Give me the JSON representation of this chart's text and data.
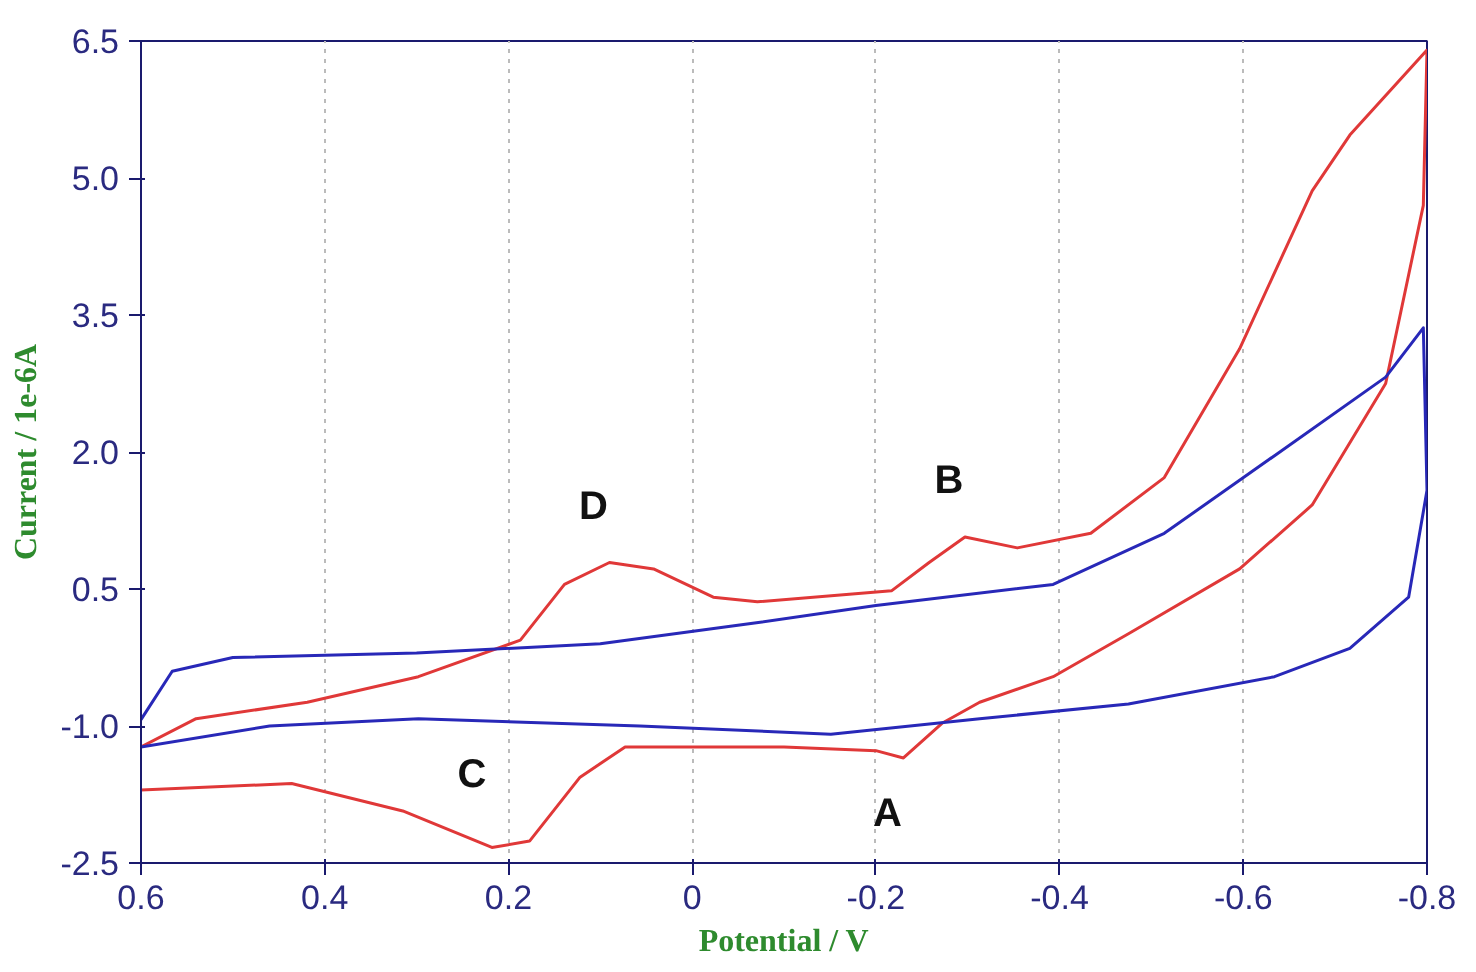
{
  "chart_data": {
    "type": "line",
    "xlabel": "Potential / V",
    "ylabel": "Current / 1e-6A",
    "xlim": [
      0.6,
      -0.8
    ],
    "ylim": [
      -2.5,
      6.5
    ],
    "xticks": [
      0.6,
      0.4,
      0.2,
      0,
      -0.2,
      -0.4,
      -0.6,
      -0.8
    ],
    "yticks": [
      6.5,
      {
        "value": 5,
        "label": "5.0"
      },
      3.5,
      {
        "value": 2,
        "label": "2.0"
      },
      0.5,
      {
        "value": -1,
        "label": "-1.0"
      },
      -2.5
    ],
    "grid": "x",
    "marker": "none",
    "line_style": "solid",
    "series": [
      {
        "color": "#e03838",
        "x": [
          0.6,
          0.436,
          0.315,
          0.218,
          0.177,
          0.122,
          0.073,
          -0.1,
          -0.2,
          -0.23,
          -0.272,
          -0.313,
          -0.393,
          -0.475,
          -0.596,
          -0.675,
          -0.755,
          -0.796,
          -0.8,
          -0.716,
          -0.675,
          -0.596,
          -0.514,
          -0.434,
          -0.354,
          -0.297,
          -0.258,
          -0.217,
          -0.071,
          -0.023,
          0.042,
          0.09,
          0.139,
          0.187,
          0.298,
          0.419,
          0.54,
          0.6
        ],
        "values": [
          -1.7,
          -1.63,
          -1.93,
          -2.33,
          -2.26,
          -1.56,
          -1.23,
          -1.23,
          -1.27,
          -1.35,
          -0.97,
          -0.74,
          -0.46,
          0.01,
          0.72,
          1.42,
          2.75,
          4.7,
          6.4,
          5.47,
          4.86,
          3.13,
          1.72,
          1.11,
          0.95,
          1.07,
          0.79,
          0.48,
          0.36,
          0.41,
          0.72,
          0.79,
          0.55,
          -0.06,
          -0.46,
          -0.74,
          -0.92,
          -1.23
        ]
      },
      {
        "color": "#2828b8",
        "x": [
          0.6,
          0.566,
          0.5,
          0.3,
          0.1,
          -0.07,
          -0.2,
          -0.393,
          -0.514,
          -0.634,
          -0.755,
          -0.796,
          -0.8,
          -0.78,
          -0.716,
          -0.634,
          -0.475,
          -0.313,
          -0.151,
          0.057,
          0.298,
          0.46,
          0.6
        ],
        "values": [
          -0.93,
          -0.4,
          -0.25,
          -0.2,
          -0.1,
          0.13,
          0.32,
          0.55,
          1.11,
          1.96,
          2.82,
          3.36,
          1.58,
          0.41,
          -0.15,
          -0.46,
          -0.76,
          -0.92,
          -1.09,
          -1.0,
          -0.92,
          -1.0,
          -1.23
        ]
      }
    ],
    "annotations": [
      {
        "text": "A",
        "x": -0.23,
        "y": -1.35
      },
      {
        "text": "B",
        "x": -0.297,
        "y": 1.07
      },
      {
        "text": "C",
        "x": 0.218,
        "y": -2.33
      },
      {
        "text": "D",
        "x": 0.09,
        "y": 0.79
      }
    ]
  }
}
